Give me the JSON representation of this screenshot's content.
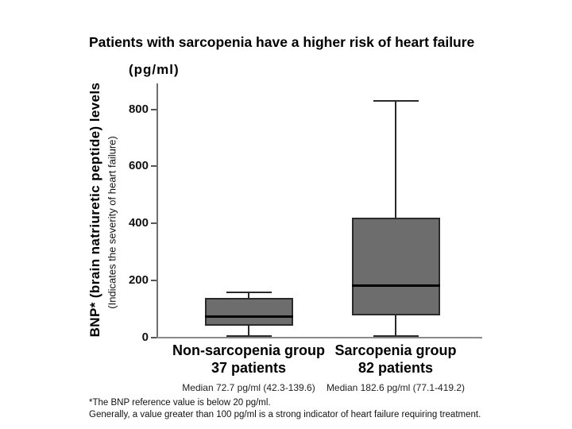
{
  "title": "Patients with sarcopenia have a higher risk of heart failure",
  "chart_data": {
    "type": "boxplot",
    "title": "Patients with sarcopenia have a higher risk of heart failure",
    "unit_label": "(pg/ml)",
    "ylabel": "BNP* (brain natriuretic peptide) levels",
    "ylabel_sub": "(Indicates the severity of heart failure)",
    "ylim": [
      0,
      890
    ],
    "yticks": [
      0,
      200,
      400,
      600,
      800
    ],
    "grid": false,
    "legend_position": "none",
    "box_fill_color": "#6d6d6d",
    "series": [
      {
        "name": "Non-sarcopenia group",
        "patients": "37 patients",
        "caption": "Median 72.7 pg/ml (42.3-139.6)",
        "n": 37,
        "whisker_low": 5,
        "q1": 42.3,
        "median": 72.7,
        "q3": 139.6,
        "whisker_high": 160
      },
      {
        "name": "Sarcopenia group",
        "patients": "82 patients",
        "caption": "Median 182.6 pg/ml (77.1-419.2)",
        "n": 82,
        "whisker_low": 5,
        "q1": 77.1,
        "median": 182.6,
        "q3": 419.2,
        "whisker_high": 830
      }
    ]
  },
  "footnotes": [
    "*The BNP reference value is below 20 pg/ml.",
    "Generally, a value greater than 100 pg/ml is a strong indicator of heart failure requiring treatment."
  ]
}
